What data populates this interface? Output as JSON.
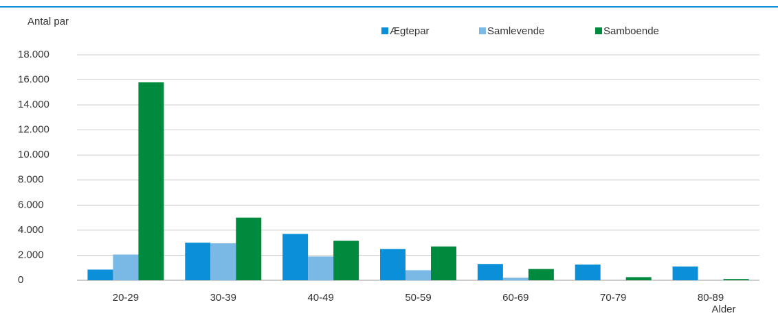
{
  "chart_data": {
    "type": "bar",
    "y_label": "Antal par",
    "x_label": "Alder",
    "categories": [
      "20-29",
      "30-39",
      "40-49",
      "50-59",
      "60-69",
      "70-79",
      "80-89"
    ],
    "series": [
      {
        "name": "Ægtepar",
        "color": "#0a8fd8",
        "values": [
          850,
          3000,
          3700,
          2500,
          1300,
          1250,
          1100
        ]
      },
      {
        "name": "Samlevende",
        "color": "#7ab8e6",
        "values": [
          2050,
          2950,
          1900,
          800,
          200,
          0,
          0
        ]
      },
      {
        "name": "Samboende",
        "color": "#008a3e",
        "values": [
          15800,
          5000,
          3150,
          2700,
          900,
          250,
          100
        ]
      }
    ],
    "ylim": [
      0,
      18000
    ],
    "yticks": [
      0,
      {
        "value": 2000,
        "label": "2.000"
      },
      {
        "value": 4000,
        "label": "4.000"
      },
      {
        "value": 6000,
        "label": "6.000"
      },
      {
        "value": 8000,
        "label": "8.000"
      },
      {
        "value": 10000,
        "label": "10.000"
      },
      {
        "value": 12000,
        "label": "12.000"
      },
      {
        "value": 14000,
        "label": "14.000"
      },
      {
        "value": 16000,
        "label": "16.000"
      },
      {
        "value": 18000,
        "label": "18.000"
      }
    ],
    "grid": true
  }
}
